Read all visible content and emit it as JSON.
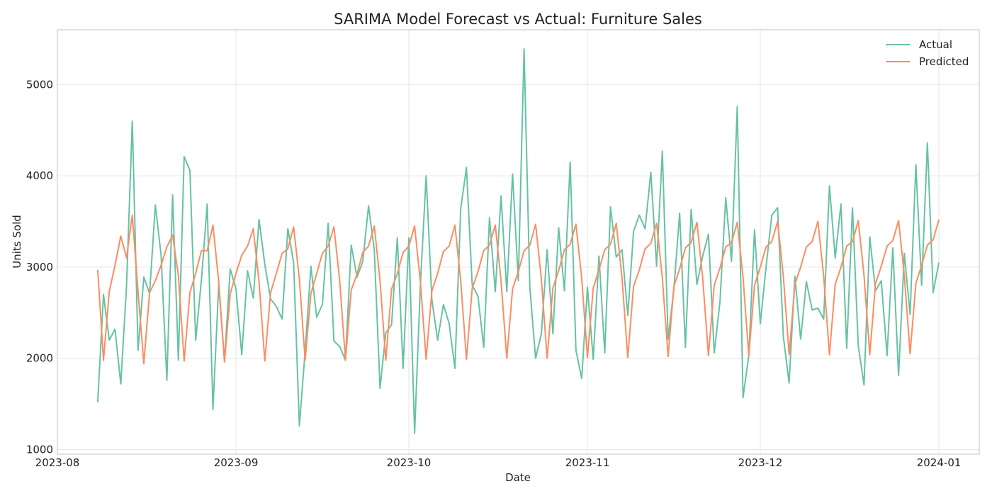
{
  "chart_data": {
    "type": "line",
    "title": "SARIMA Model Forecast vs Actual: Furniture Sales",
    "xlabel": "Date",
    "ylabel": "Units Sold",
    "xlim": [
      "2023-08-01",
      "2024-01-08"
    ],
    "ylim": [
      950,
      5600
    ],
    "yticks": [
      1000,
      2000,
      3000,
      4000,
      5000
    ],
    "xticks": [
      "2023-08-01",
      "2023-09-01",
      "2023-10-01",
      "2023-11-01",
      "2023-12-01",
      "2024-01-01"
    ],
    "xtick_labels": [
      "2023-08",
      "2023-09",
      "2023-10",
      "2023-11",
      "2023-12",
      "2024-01"
    ],
    "grid": true,
    "legend_position": "top-right",
    "x": [
      "2023-08-08",
      "2023-08-09",
      "2023-08-10",
      "2023-08-11",
      "2023-08-12",
      "2023-08-13",
      "2023-08-14",
      "2023-08-15",
      "2023-08-16",
      "2023-08-17",
      "2023-08-18",
      "2023-08-19",
      "2023-08-20",
      "2023-08-21",
      "2023-08-22",
      "2023-08-23",
      "2023-08-24",
      "2023-08-25",
      "2023-08-26",
      "2023-08-27",
      "2023-08-28",
      "2023-08-29",
      "2023-08-30",
      "2023-08-31",
      "2023-09-01",
      "2023-09-02",
      "2023-09-03",
      "2023-09-04",
      "2023-09-05",
      "2023-09-06",
      "2023-09-07",
      "2023-09-08",
      "2023-09-09",
      "2023-09-10",
      "2023-09-11",
      "2023-09-12",
      "2023-09-13",
      "2023-09-14",
      "2023-09-15",
      "2023-09-16",
      "2023-09-17",
      "2023-09-18",
      "2023-09-19",
      "2023-09-20",
      "2023-09-21",
      "2023-09-22",
      "2023-09-23",
      "2023-09-24",
      "2023-09-25",
      "2023-09-26",
      "2023-09-27",
      "2023-09-28",
      "2023-09-29",
      "2023-09-30",
      "2023-10-01",
      "2023-10-02",
      "2023-10-03",
      "2023-10-04",
      "2023-10-05",
      "2023-10-06",
      "2023-10-07",
      "2023-10-08",
      "2023-10-09",
      "2023-10-10",
      "2023-10-11",
      "2023-10-12",
      "2023-10-13",
      "2023-10-14",
      "2023-10-15",
      "2023-10-16",
      "2023-10-17",
      "2023-10-18",
      "2023-10-19",
      "2023-10-20",
      "2023-10-21",
      "2023-10-22",
      "2023-10-23",
      "2023-10-24",
      "2023-10-25",
      "2023-10-26",
      "2023-10-27",
      "2023-10-28",
      "2023-10-29",
      "2023-10-30",
      "2023-10-31",
      "2023-11-01",
      "2023-11-02",
      "2023-11-03",
      "2023-11-04",
      "2023-11-05",
      "2023-11-06",
      "2023-11-07",
      "2023-11-08",
      "2023-11-09",
      "2023-11-10",
      "2023-11-11",
      "2023-11-12",
      "2023-11-13",
      "2023-11-14",
      "2023-11-15",
      "2023-11-16",
      "2023-11-17",
      "2023-11-18",
      "2023-11-19",
      "2023-11-20",
      "2023-11-21",
      "2023-11-22",
      "2023-11-23",
      "2023-11-24",
      "2023-11-25",
      "2023-11-26",
      "2023-11-27",
      "2023-11-28",
      "2023-11-29",
      "2023-11-30",
      "2023-12-01",
      "2023-12-02",
      "2023-12-03",
      "2023-12-04",
      "2023-12-05",
      "2023-12-06",
      "2023-12-07",
      "2023-12-08",
      "2023-12-09",
      "2023-12-10",
      "2023-12-11",
      "2023-12-12",
      "2023-12-13",
      "2023-12-14",
      "2023-12-15",
      "2023-12-16",
      "2023-12-17",
      "2023-12-18",
      "2023-12-19",
      "2023-12-20",
      "2023-12-21",
      "2023-12-22",
      "2023-12-23",
      "2023-12-24",
      "2023-12-25",
      "2023-12-26",
      "2023-12-27",
      "2023-12-28",
      "2023-12-29",
      "2023-12-30",
      "2023-12-31",
      "2024-01-01"
    ],
    "series": [
      {
        "name": "Actual",
        "color": "#66c2a5",
        "values": [
          1520,
          2700,
          2200,
          2320,
          1720,
          2790,
          4600,
          2090,
          2890,
          2710,
          3680,
          3130,
          1760,
          3790,
          1980,
          4210,
          4060,
          2200,
          2860,
          3690,
          1440,
          2810,
          1980,
          2980,
          2760,
          2040,
          2960,
          2660,
          3520,
          3030,
          2650,
          2570,
          2430,
          3420,
          3050,
          1260,
          2080,
          3010,
          2450,
          2590,
          3480,
          2190,
          2130,
          1980,
          3240,
          2890,
          3060,
          3670,
          3190,
          1670,
          2280,
          2370,
          3320,
          1890,
          3320,
          1180,
          2800,
          4000,
          2640,
          2200,
          2590,
          2380,
          1890,
          3640,
          4090,
          2800,
          2680,
          2120,
          3540,
          2730,
          3780,
          2730,
          4020,
          2850,
          5390,
          2780,
          2000,
          2270,
          3190,
          2270,
          3430,
          2740,
          4150,
          2090,
          1780,
          2780,
          1990,
          3120,
          2060,
          3660,
          3110,
          3190,
          2470,
          3390,
          3570,
          3420,
          4040,
          3010,
          4270,
          2210,
          2760,
          3590,
          2120,
          3630,
          2810,
          3120,
          3360,
          2060,
          2620,
          3760,
          3060,
          4760,
          1570,
          2030,
          3410,
          2380,
          3000,
          3570,
          3650,
          2240,
          1730,
          2900,
          2210,
          2840,
          2530,
          2550,
          2430,
          3890,
          3100,
          3690,
          2110,
          3650,
          2140,
          1710,
          3330,
          2740,
          2850,
          2030,
          3210,
          1810,
          3150,
          2480,
          4120,
          2800,
          4360,
          2720,
          3050
        ]
      },
      {
        "name": "Predicted",
        "color": "#fc8d62",
        "values": [
          2970,
          1980,
          2730,
          3020,
          3340,
          3100,
          3570,
          2730,
          1940,
          2720,
          2850,
          3020,
          3220,
          3350,
          2910,
          1970,
          2720,
          2930,
          3180,
          3180,
          3460,
          2840,
          1960,
          2710,
          2930,
          3130,
          3230,
          3420,
          2840,
          1970,
          2720,
          2930,
          3150,
          3200,
          3440,
          2870,
          1980,
          2710,
          2930,
          3150,
          3230,
          3440,
          2850,
          1980,
          2750,
          2920,
          3160,
          3230,
          3450,
          2850,
          1980,
          2760,
          2930,
          3160,
          3230,
          3450,
          2840,
          1990,
          2740,
          2930,
          3170,
          3230,
          3460,
          2850,
          1990,
          2770,
          2950,
          3180,
          3240,
          3460,
          2850,
          2000,
          2760,
          2950,
          3180,
          3240,
          3470,
          2870,
          2000,
          2770,
          2960,
          3190,
          3250,
          3470,
          2880,
          2010,
          2770,
          2970,
          3190,
          3250,
          3480,
          2880,
          2010,
          2790,
          2970,
          3200,
          3260,
          3480,
          2880,
          2020,
          2790,
          2980,
          3210,
          3270,
          3490,
          2880,
          2030,
          2800,
          2990,
          3220,
          3270,
          3490,
          2890,
          2030,
          2800,
          3000,
          3220,
          3280,
          3500,
          2900,
          2040,
          2810,
          3000,
          3220,
          3280,
          3500,
          2900,
          2040,
          2810,
          3000,
          3230,
          3280,
          3510,
          2910,
          2040,
          2820,
          3010,
          3230,
          3290,
          3510,
          2910,
          2050,
          2820,
          3020,
          3240,
          3300,
          3520
        ]
      }
    ]
  }
}
